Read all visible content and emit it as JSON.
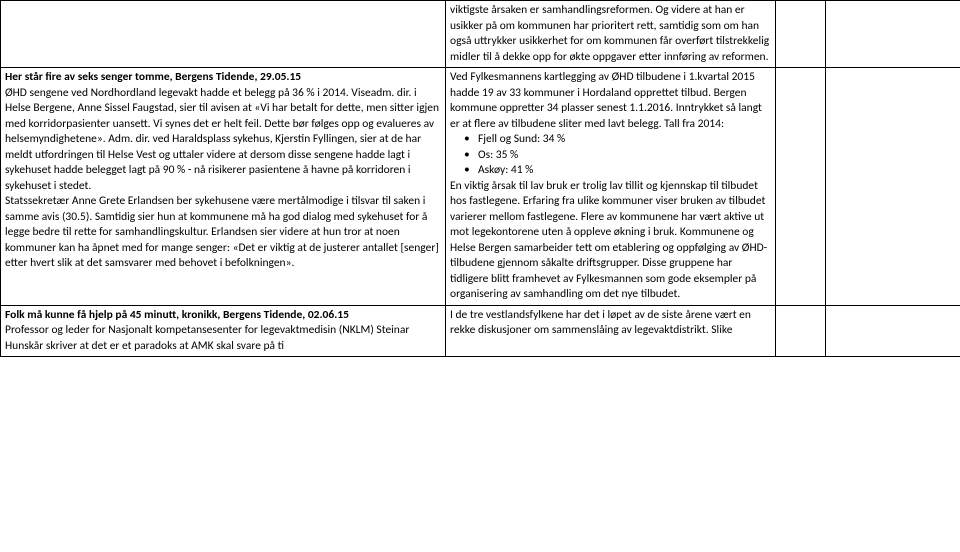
{
  "row1": {
    "col1": "",
    "col2": "viktigste årsaken er samhandlingsreformen. Og videre at han er usikker på om kommunen har prioritert rett, samtidig som om han også uttrykker usikkerhet for om kommunen får overført tilstrekkelig midler til å dekke opp for økte oppgaver etter innføring av reformen."
  },
  "row2": {
    "col1": {
      "title": "Her står fire av seks senger tomme, Bergens Tidende, 29.05.15",
      "body": "ØHD sengene ved Nordhordland legevakt hadde et belegg på 36 % i 2014. Viseadm. dir. i Helse Bergene, Anne Sissel Faugstad, sier til avisen at «Vi har betalt for dette, men sitter igjen med korridorpasienter uansett. Vi synes det er helt feil. Dette bør følges opp og evalueres av helsemyndighetene». Adm. dir. ved Haraldsplass sykehus, Kjerstin Fyllingen, sier at de har meldt utfordringen til Helse Vest og uttaler videre at dersom disse sengene hadde lagt i sykehuset hadde belegget lagt på 90 % - nå risikerer pasientene å havne på korridoren i sykehuset i stedet.",
      "body2": "Statssekretær Anne Grete Erlandsen ber sykehusene være mertålmodige i tilsvar til saken i samme avis (30.5). Samtidig sier hun at kommunene må ha god dialog med sykehuset for å legge bedre til rette for samhandlingskultur. Erlandsen sier videre at hun tror at noen kommuner kan ha åpnet med for mange senger: «Det er viktig at de justerer antallet [senger] etter hvert slik at det samsvarer med behovet i befolkningen»."
    },
    "col2": {
      "p1": "Ved Fylkesmannens kartlegging av ØHD tilbudene i 1.kvartal 2015 hadde 19 av 33 kommuner i Hordaland opprettet tilbud. Bergen kommune oppretter 34 plasser senest 1.1.2016. Inntrykket så langt er at flere av tilbudene sliter med lavt belegg. Tall fra 2014:",
      "bullets": [
        "Fjell og Sund: 34 %",
        "Os: 35 %",
        "Askøy: 41 %"
      ],
      "p2": "En viktig årsak til lav bruk er trolig lav tillit og kjennskap til tilbudet hos fastlegene. Erfaring fra ulike kommuner viser bruken av tilbudet varierer mellom fastlegene. Flere av kommunene har vært aktive ut mot legekontorene uten å oppleve økning i bruk. Kommunene og Helse Bergen samarbeider tett om etablering og oppfølging av ØHD-tilbudene gjennom såkalte driftsgrupper. Disse gruppene har tidligere blitt framhevet av Fylkesmannen som gode eksempler på organisering av samhandling om det nye tilbudet."
    }
  },
  "row3": {
    "col1": {
      "title": "Folk må kunne få hjelp på 45 minutt, kronikk, Bergens Tidende, 02.06.15",
      "body": "Professor og leder for Nasjonalt kompetansesenter for legevaktmedisin (NKLM) Steinar Hunskår skriver at det er et paradoks at AMK skal svare på ti"
    },
    "col2": "I de tre vestlandsfylkene har det i løpet av de siste årene vært en rekke diskusjoner om sammenslåing av legevaktdistrikt. Slike"
  }
}
